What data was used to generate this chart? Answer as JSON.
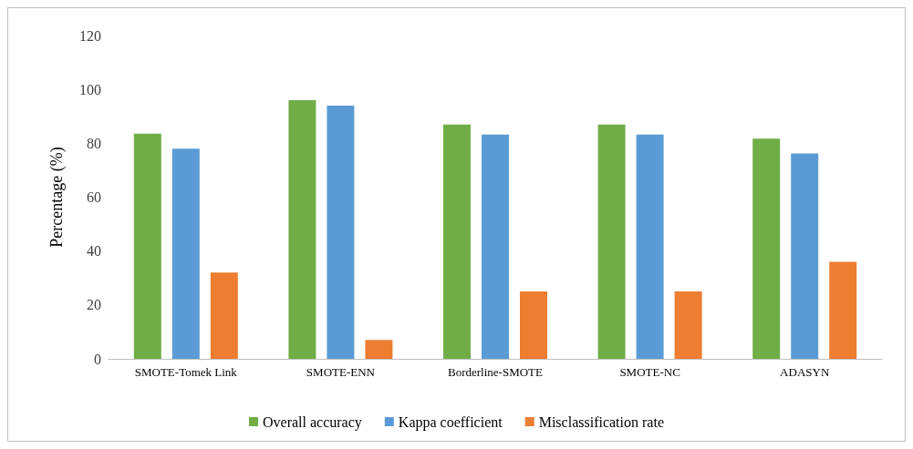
{
  "chart_data": {
    "type": "bar",
    "ylabel": "Percentage (%)",
    "categories": [
      "SMOTE-Tomek Link",
      "SMOTE-ENN",
      "Borderline-SMOTE",
      "SMOTE-NC",
      "ADASYN"
    ],
    "series": [
      {
        "name": "Overall accuracy",
        "color": "#70ad47",
        "values": [
          83.6,
          96,
          87,
          87,
          81.7
        ]
      },
      {
        "name": "Kappa coefficient",
        "color": "#5b9bd5",
        "values": [
          78,
          94,
          83.2,
          83.2,
          76.2
        ]
      },
      {
        "name": "Misclassification rate",
        "color": "#ed7d31",
        "values": [
          32,
          7,
          25,
          25,
          36
        ]
      }
    ],
    "ylim": [
      0,
      120
    ],
    "yticks": [
      0,
      20,
      40,
      60,
      80,
      100,
      120
    ],
    "grid": false,
    "legend": "bottom"
  }
}
